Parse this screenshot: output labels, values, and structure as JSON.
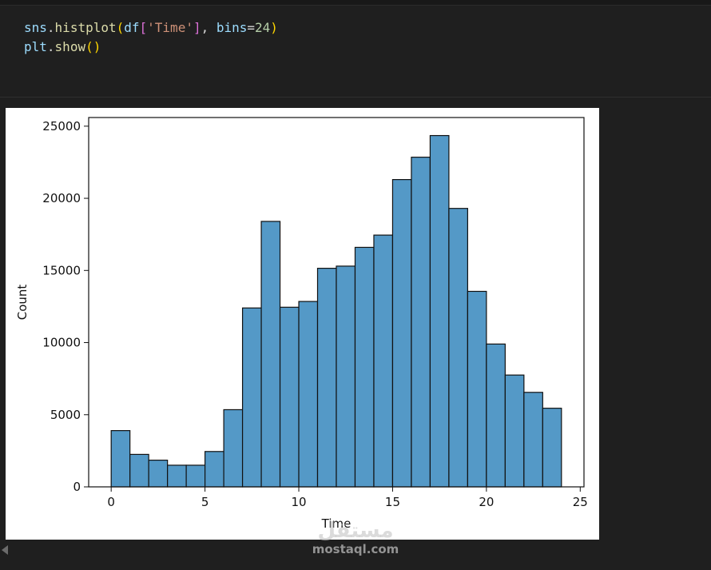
{
  "code_cell": {
    "line1": {
      "t1": "sns",
      "t2": ".",
      "t3": "histplot",
      "t4": "(",
      "t5": "df",
      "t6": "[",
      "t7": "'Time'",
      "t8": "]",
      "t9": ", ",
      "t10": "bins",
      "t11": "=",
      "t12": "24",
      "t13": ")"
    },
    "line2": {
      "t1": "plt",
      "t2": ".",
      "t3": "show",
      "t4": "()"
    }
  },
  "watermark": {
    "arabic": "مستقل",
    "latin": "mostaql.com"
  },
  "icons": {
    "collapse": "chevron-left-icon"
  },
  "chart_data": {
    "type": "bar",
    "subtype": "histogram",
    "title": "",
    "xlabel": "Time",
    "ylabel": "Count",
    "bin_width": 1,
    "bin_edges_start": 0,
    "x": [
      0,
      1,
      2,
      3,
      4,
      5,
      6,
      7,
      8,
      9,
      10,
      11,
      12,
      13,
      14,
      15,
      16,
      17,
      18,
      19,
      20,
      21,
      22,
      23
    ],
    "values": [
      3900,
      2250,
      1850,
      1500,
      1500,
      2450,
      5350,
      12400,
      18400,
      12450,
      12850,
      15150,
      15300,
      16600,
      17450,
      21300,
      22850,
      24350,
      19300,
      13550,
      9900,
      7750,
      6550,
      5450
    ],
    "xlim": [
      -1.2,
      25.2
    ],
    "ylim": [
      0,
      25600
    ],
    "xticks": [
      0,
      5,
      10,
      15,
      20,
      25
    ],
    "xtick_labels": [
      "0",
      "5",
      "10",
      "15",
      "20",
      "25"
    ],
    "yticks": [
      0,
      5000,
      10000,
      15000,
      20000,
      25000
    ],
    "ytick_labels": [
      "0",
      "5000",
      "10000",
      "15000",
      "20000",
      "25000"
    ],
    "grid": false,
    "bar_color": "#5499c7",
    "edge_color": "#111111"
  }
}
